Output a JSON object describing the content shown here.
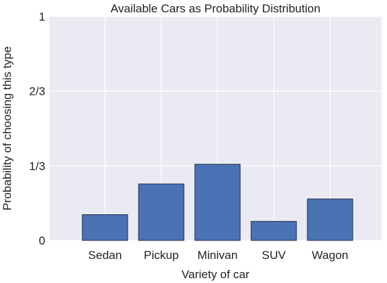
{
  "chart_data": {
    "type": "bar",
    "title": "Available Cars as Probability Distribution",
    "xlabel": "Variety of car",
    "ylabel": "Probability of choosing this type",
    "categories": [
      "Sedan",
      "Pickup",
      "Minivan",
      "SUV",
      "Wagon"
    ],
    "values": [
      0.115,
      0.252,
      0.34,
      0.085,
      0.185
    ],
    "ylim": [
      0,
      1
    ],
    "yticks": [
      {
        "value": 0,
        "label": "0"
      },
      {
        "value": 0.3333,
        "label": "1/3"
      },
      {
        "value": 0.6667,
        "label": "2/3"
      },
      {
        "value": 1,
        "label": "1"
      }
    ],
    "grid": true,
    "colors": {
      "bar": "#4a72b5",
      "bar_edge": "#1e2a44",
      "plot_bg": "#eaeaf2",
      "grid": "#ffffff"
    }
  }
}
